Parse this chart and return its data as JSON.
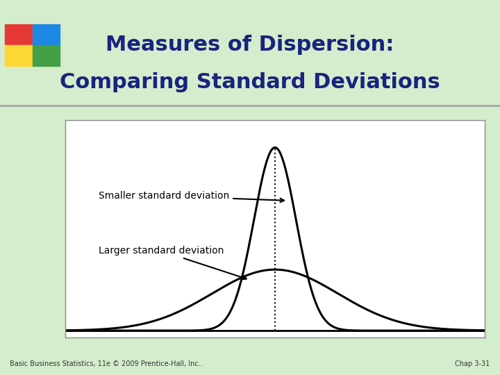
{
  "title_line1": "Measures of Dispersion:",
  "title_line2": "Comparing Standard Deviations",
  "title_color": "#1a237e",
  "bg_color": "#d4edcc",
  "slide_bg": "#d4edcc",
  "box_bg": "#ffffff",
  "curve_color": "#000000",
  "label_small": "Smaller standard deviation",
  "label_large": "Larger standard deviation",
  "footer_left": "Basic Business Statistics, 11e © 2009 Prentice-Hall, Inc..",
  "footer_right": "Chap 3-31",
  "mean": 0,
  "sigma_small": 0.5,
  "sigma_large": 1.5,
  "x_range": [
    -5,
    5
  ],
  "decoration_colors": [
    "#e53935",
    "#1e88e5",
    "#fdd835",
    "#43a047"
  ]
}
